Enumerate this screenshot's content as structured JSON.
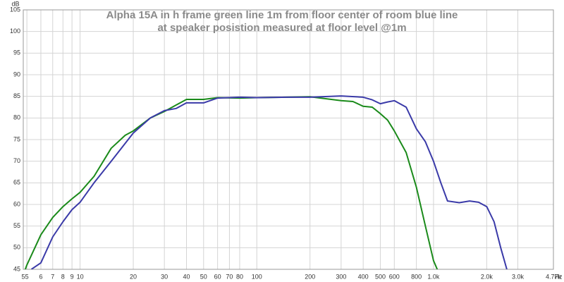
{
  "chart_data": {
    "type": "line",
    "title_lines": [
      "Alpha 15A in h frame        green line  1m from floor center of room     blue line",
      "at speaker posistion measured at floor level @1m"
    ],
    "x_unit": "Hz",
    "y_unit": "dB",
    "log_x": true,
    "grid": true,
    "xlim": [
      4.77,
      4770
    ],
    "ylim": [
      45,
      105
    ],
    "xticks": [
      {
        "value": 4.77,
        "label": "5"
      },
      5,
      6,
      7,
      8,
      9,
      10,
      20,
      30,
      40,
      50,
      60,
      70,
      80,
      100,
      200,
      300,
      400,
      500,
      600,
      800,
      {
        "value": 1000,
        "label": "1.0k"
      },
      {
        "value": 2000,
        "label": "2.0k"
      },
      {
        "value": 3000,
        "label": "3.0k"
      },
      {
        "value": 4770,
        "label": "4.77k"
      }
    ],
    "yticks": [
      45,
      50,
      55,
      60,
      65,
      70,
      75,
      80,
      85,
      90,
      95,
      100,
      105
    ],
    "series": [
      {
        "color": "#1a8a1a",
        "x": [
          4.9,
          5,
          6,
          7,
          8,
          9,
          10,
          12,
          15,
          18,
          20,
          25,
          30,
          35,
          40,
          50,
          60,
          80,
          100,
          150,
          200,
          250,
          300,
          350,
          400,
          450,
          500,
          550,
          600,
          700,
          800,
          900,
          1000,
          1050
        ],
        "values": [
          45,
          46,
          53,
          57,
          59.5,
          61.3,
          62.8,
          66.5,
          73,
          76,
          77,
          80,
          81.5,
          83,
          84.3,
          84.3,
          84.7,
          84.6,
          84.7,
          84.8,
          84.9,
          84.4,
          84,
          83.8,
          82.7,
          82.5,
          81,
          79.5,
          77,
          72,
          64,
          55,
          47,
          45
        ]
      },
      {
        "color": "#3a3aa8",
        "x": [
          5.3,
          6,
          7,
          8,
          9,
          10,
          12,
          15,
          20,
          25,
          30,
          35,
          40,
          50,
          60,
          80,
          100,
          150,
          200,
          300,
          400,
          450,
          500,
          550,
          600,
          700,
          800,
          900,
          1000,
          1100,
          1200,
          1400,
          1600,
          1800,
          2000,
          2200,
          2400,
          2600
        ],
        "values": [
          45,
          46.5,
          52.5,
          56,
          58.8,
          60.5,
          65,
          70,
          76.5,
          80,
          81.7,
          82.2,
          83.5,
          83.5,
          84.6,
          84.8,
          84.7,
          84.8,
          84.8,
          85.1,
          84.8,
          84.2,
          83.3,
          83.7,
          84,
          82.5,
          77.5,
          74.5,
          70,
          65,
          60.8,
          60.4,
          60.8,
          60.5,
          59.5,
          56,
          50,
          45
        ]
      }
    ]
  }
}
